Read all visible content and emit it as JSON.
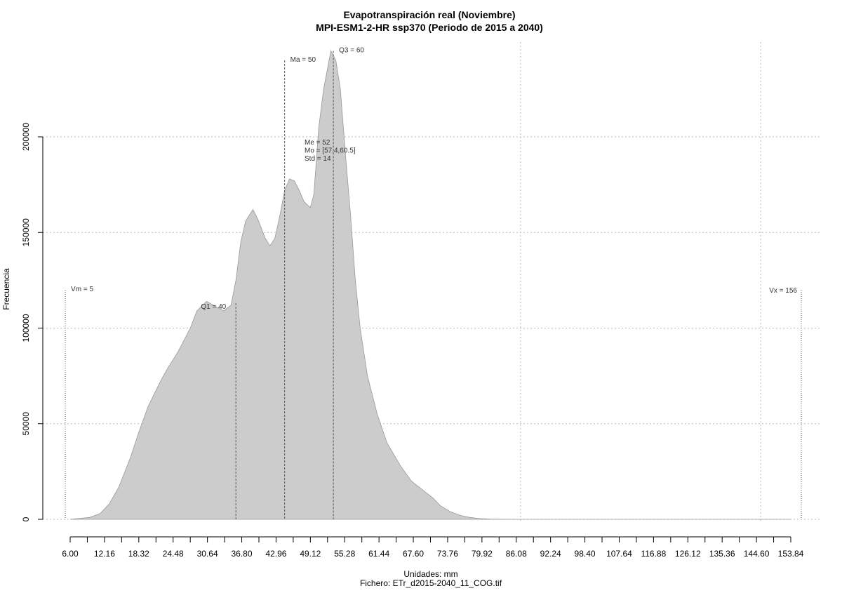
{
  "chart_data": {
    "type": "area",
    "title": "Evapotranspiración real (Noviembre)",
    "subtitle": "MPI-ESM1-2-HR ssp370 (Periodo de 2015 a 2040)",
    "xlabel": "Unidades: mm",
    "xlabel2": "Fichero: ETr_d2015-2040_11_COG.tif",
    "ylabel": "Frecuencia",
    "xlim": [
      6.0,
      153.84
    ],
    "ylim": [
      0,
      245000
    ],
    "grid": true,
    "colors": {
      "fill": "#cccccc",
      "stroke": "#999999",
      "grid": "#bbbbbb",
      "marker": "#555555"
    },
    "x_tick_labels": [
      "6.00",
      "12.16",
      "18.32",
      "24.48",
      "30.64",
      "36.80",
      "42.96",
      "49.12",
      "55.28",
      "61.44",
      "67.60",
      "73.76",
      "79.92",
      "86.08",
      "92.24",
      "98.40",
      "107.64",
      "116.88",
      "126.12",
      "135.36",
      "144.60",
      "153.84"
    ],
    "y_ticks": [
      0,
      50000,
      100000,
      150000,
      200000
    ],
    "y_tick_labels": [
      "0",
      "50000",
      "100000",
      "150000",
      "200000"
    ],
    "x_grid_values": [
      98.4,
      147.68
    ],
    "series": [
      {
        "x": [
          6.0,
          8.0,
          10.0,
          12.16,
          14.0,
          16.0,
          18.32,
          20.0,
          22.0,
          24.48,
          26.0,
          28.0,
          30.64,
          32.0,
          34.0,
          36.0,
          37.5,
          39.0,
          40.0,
          41.0,
          42.0,
          43.5,
          44.5,
          46.0,
          47.0,
          48.0,
          49.12,
          50.0,
          51.0,
          52.0,
          53.0,
          54.0,
          55.28,
          56.0,
          57.0,
          58.0,
          59.5,
          60.5,
          61.44,
          62.5,
          63.5,
          64.5,
          65.5,
          67.0,
          69.0,
          71.0,
          73.76,
          76.0,
          78.5,
          80.5,
          82.0,
          84.0,
          86.08,
          88.0,
          90.0,
          92.24,
          95.0,
          98.4,
          105.0,
          115.0,
          130.0,
          145.0,
          153.84
        ],
        "y": [
          0,
          500,
          1000,
          3000,
          8000,
          17000,
          32000,
          45000,
          59000,
          72000,
          79000,
          87000,
          100000,
          109000,
          114000,
          111000,
          109000,
          112000,
          125000,
          145000,
          156000,
          162000,
          157000,
          147000,
          143000,
          147000,
          160000,
          172000,
          178000,
          177000,
          172000,
          166000,
          163000,
          170000,
          205000,
          225000,
          245000,
          240000,
          225000,
          190000,
          160000,
          125000,
          100000,
          75000,
          55000,
          40000,
          28000,
          20000,
          15000,
          11000,
          7000,
          4000,
          2000,
          1000,
          400,
          150,
          50,
          0,
          0,
          0,
          0,
          0,
          0
        ]
      }
    ],
    "markers": [
      {
        "x": 5.0,
        "top": 120000,
        "label": "Vm = 5",
        "style": "dotted"
      },
      {
        "x": 40.0,
        "top": 113000,
        "label": "Q1 = 40",
        "style": "dashed"
      },
      {
        "x": 50.0,
        "top": 240000,
        "label": "Ma = 50",
        "style": "dashed"
      },
      {
        "x": 60.0,
        "top": 245000,
        "label": "Q3 = 60",
        "style": "dashed"
      },
      {
        "x": 156.0,
        "top": 120000,
        "label": "Vx = 156",
        "style": "dotted"
      }
    ],
    "stats": [
      "Me = 52",
      "Mo = [57.4,60.5]",
      "Std = 14"
    ]
  }
}
